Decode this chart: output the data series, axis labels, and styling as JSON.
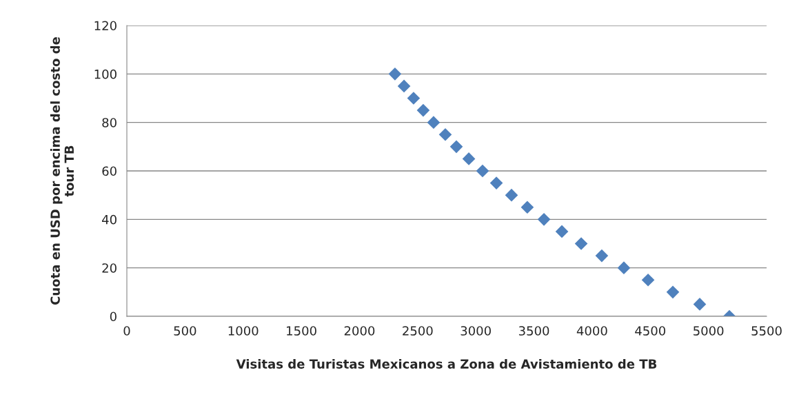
{
  "chart_data": {
    "type": "scatter",
    "xlabel": "Visitas de Turistas Mexicanos a Zona de Avistamiento de TB",
    "ylabel": "Cuota en USD por encima del costo de\ntour TB",
    "x": [
      2305,
      2383,
      2465,
      2548,
      2637,
      2738,
      2833,
      2940,
      3058,
      3177,
      3307,
      3443,
      3586,
      3740,
      3906,
      4083,
      4273,
      4481,
      4694,
      4925,
      5180
    ],
    "series": [
      {
        "color": "#4f81bd",
        "values": [
          100,
          95,
          90,
          85,
          80,
          75,
          70,
          65,
          60,
          55,
          50,
          45,
          40,
          35,
          30,
          25,
          20,
          15,
          10,
          5,
          0
        ]
      }
    ],
    "xlim": [
      0,
      5500
    ],
    "xticks": [
      0,
      500,
      1000,
      1500,
      2000,
      2500,
      3000,
      3500,
      4000,
      4500,
      5000,
      5500
    ],
    "ylim": [
      0,
      120
    ],
    "yticks": [
      0,
      20,
      40,
      60,
      80,
      100,
      120
    ],
    "grid": "y",
    "marker": "diamond",
    "legend": false
  }
}
